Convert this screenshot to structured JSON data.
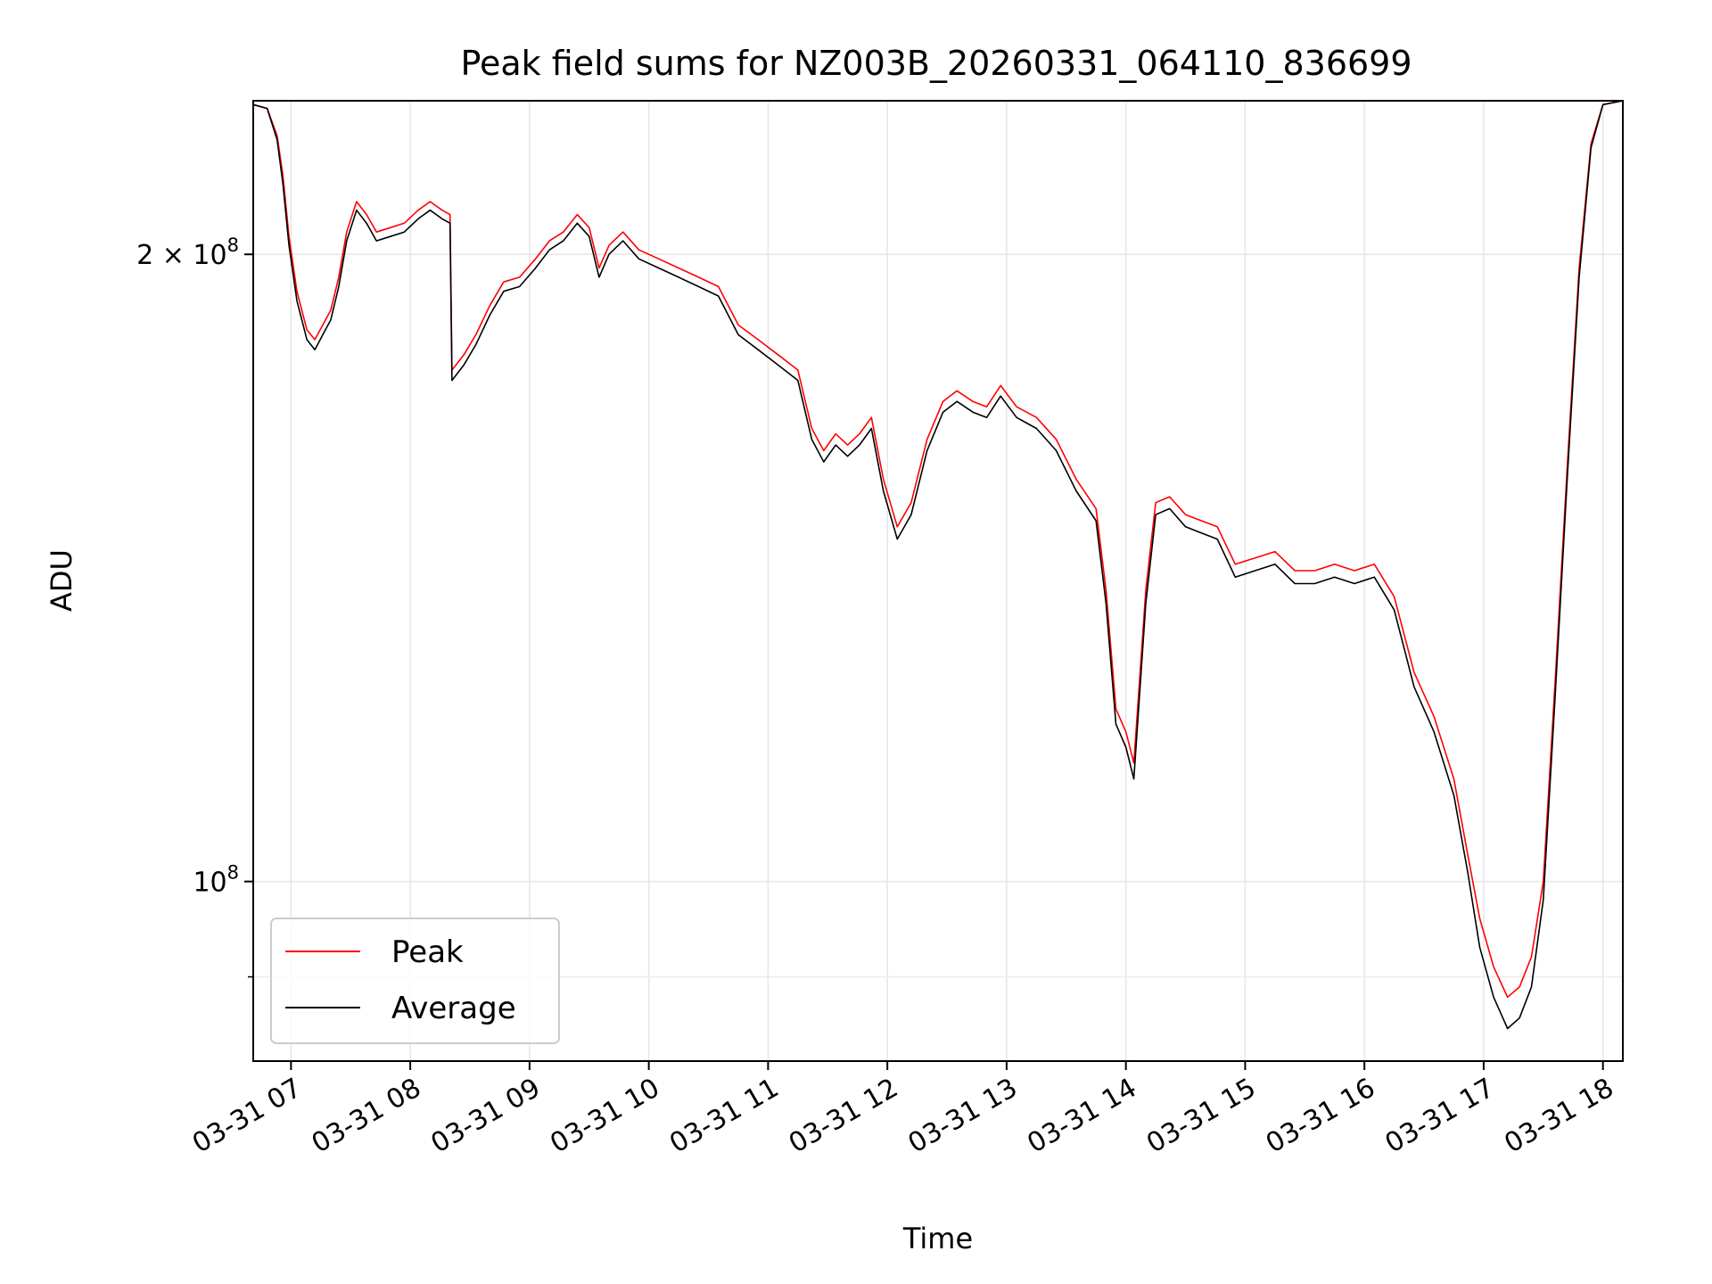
{
  "chart_data": {
    "type": "line",
    "title": "Peak field sums for NZ003B_20260331_064110_836699",
    "xlabel": "Time",
    "ylabel": "ADU",
    "x_scale": "time",
    "y_scale": "log",
    "xlim": [
      "2026-03-31 06:41",
      "2026-03-31 18:10"
    ],
    "ylim": [
      82000000,
      237000000
    ],
    "x_ticks": [
      {
        "t": "2026-03-31 07:00",
        "label": "03-31 07"
      },
      {
        "t": "2026-03-31 08:00",
        "label": "03-31 08"
      },
      {
        "t": "2026-03-31 09:00",
        "label": "03-31 09"
      },
      {
        "t": "2026-03-31 10:00",
        "label": "03-31 10"
      },
      {
        "t": "2026-03-31 11:00",
        "label": "03-31 11"
      },
      {
        "t": "2026-03-31 12:00",
        "label": "03-31 12"
      },
      {
        "t": "2026-03-31 13:00",
        "label": "03-31 13"
      },
      {
        "t": "2026-03-31 14:00",
        "label": "03-31 14"
      },
      {
        "t": "2026-03-31 15:00",
        "label": "03-31 15"
      },
      {
        "t": "2026-03-31 16:00",
        "label": "03-31 16"
      },
      {
        "t": "2026-03-31 17:00",
        "label": "03-31 17"
      },
      {
        "t": "2026-03-31 18:00",
        "label": "03-31 18"
      }
    ],
    "y_major_ticks": [
      {
        "value": 100000000,
        "label_base": "10",
        "label_exp": "8",
        "label_prefix": ""
      },
      {
        "value": 200000000,
        "label_base": "10",
        "label_exp": "8",
        "label_prefix": "2 × "
      }
    ],
    "y_minor_ticks": [
      90000000
    ],
    "grid": true,
    "legend_position": "lower-left",
    "series": [
      {
        "name": "Peak",
        "color": "#ff0000",
        "points": [
          [
            "2026-03-31 06:41",
            236000000
          ],
          [
            "2026-03-31 06:48",
            235000000
          ],
          [
            "2026-03-31 06:53",
            228000000
          ],
          [
            "2026-03-31 06:56",
            218000000
          ],
          [
            "2026-03-31 06:59",
            204000000
          ],
          [
            "2026-03-31 07:03",
            192000000
          ],
          [
            "2026-03-31 07:08",
            184000000
          ],
          [
            "2026-03-31 07:12",
            182000000
          ],
          [
            "2026-03-31 07:16",
            185000000
          ],
          [
            "2026-03-31 07:20",
            188000000
          ],
          [
            "2026-03-31 07:24",
            195000000
          ],
          [
            "2026-03-31 07:28",
            205000000
          ],
          [
            "2026-03-31 07:33",
            212000000
          ],
          [
            "2026-03-31 07:38",
            209000000
          ],
          [
            "2026-03-31 07:43",
            205000000
          ],
          [
            "2026-03-31 07:50",
            206000000
          ],
          [
            "2026-03-31 07:57",
            207000000
          ],
          [
            "2026-03-31 08:04",
            210000000
          ],
          [
            "2026-03-31 08:10",
            212000000
          ],
          [
            "2026-03-31 08:16",
            210000000
          ],
          [
            "2026-03-31 08:20",
            209000000
          ],
          [
            "2026-03-31 08:21",
            176000000
          ],
          [
            "2026-03-31 08:27",
            179000000
          ],
          [
            "2026-03-31 08:33",
            183000000
          ],
          [
            "2026-03-31 08:40",
            189000000
          ],
          [
            "2026-03-31 08:47",
            194000000
          ],
          [
            "2026-03-31 08:55",
            195000000
          ],
          [
            "2026-03-31 09:03",
            199000000
          ],
          [
            "2026-03-31 09:10",
            203000000
          ],
          [
            "2026-03-31 09:17",
            205000000
          ],
          [
            "2026-03-31 09:24",
            209000000
          ],
          [
            "2026-03-31 09:30",
            206000000
          ],
          [
            "2026-03-31 09:35",
            197000000
          ],
          [
            "2026-03-31 09:40",
            202000000
          ],
          [
            "2026-03-31 09:47",
            205000000
          ],
          [
            "2026-03-31 09:55",
            201000000
          ],
          [
            "2026-03-31 10:05",
            199000000
          ],
          [
            "2026-03-31 10:15",
            197000000
          ],
          [
            "2026-03-31 10:25",
            195000000
          ],
          [
            "2026-03-31 10:35",
            193000000
          ],
          [
            "2026-03-31 10:45",
            185000000
          ],
          [
            "2026-03-31 10:55",
            182000000
          ],
          [
            "2026-03-31 11:05",
            179000000
          ],
          [
            "2026-03-31 11:15",
            176000000
          ],
          [
            "2026-03-31 11:22",
            165000000
          ],
          [
            "2026-03-31 11:28",
            161000000
          ],
          [
            "2026-03-31 11:34",
            164000000
          ],
          [
            "2026-03-31 11:40",
            162000000
          ],
          [
            "2026-03-31 11:46",
            164000000
          ],
          [
            "2026-03-31 11:52",
            167000000
          ],
          [
            "2026-03-31 11:58",
            156000000
          ],
          [
            "2026-03-31 12:05",
            148000000
          ],
          [
            "2026-03-31 12:12",
            152000000
          ],
          [
            "2026-03-31 12:20",
            163000000
          ],
          [
            "2026-03-31 12:28",
            170000000
          ],
          [
            "2026-03-31 12:35",
            172000000
          ],
          [
            "2026-03-31 12:43",
            170000000
          ],
          [
            "2026-03-31 12:50",
            169000000
          ],
          [
            "2026-03-31 12:57",
            173000000
          ],
          [
            "2026-03-31 13:05",
            169000000
          ],
          [
            "2026-03-31 13:15",
            167000000
          ],
          [
            "2026-03-31 13:25",
            163000000
          ],
          [
            "2026-03-31 13:35",
            156000000
          ],
          [
            "2026-03-31 13:45",
            151000000
          ],
          [
            "2026-03-31 13:50",
            138000000
          ],
          [
            "2026-03-31 13:55",
            121000000
          ],
          [
            "2026-03-31 14:00",
            118000000
          ],
          [
            "2026-03-31 14:04",
            114000000
          ],
          [
            "2026-03-31 14:10",
            138000000
          ],
          [
            "2026-03-31 14:15",
            152000000
          ],
          [
            "2026-03-31 14:22",
            153000000
          ],
          [
            "2026-03-31 14:30",
            150000000
          ],
          [
            "2026-03-31 14:38",
            149000000
          ],
          [
            "2026-03-31 14:46",
            148000000
          ],
          [
            "2026-03-31 14:55",
            142000000
          ],
          [
            "2026-03-31 15:05",
            143000000
          ],
          [
            "2026-03-31 15:15",
            144000000
          ],
          [
            "2026-03-31 15:25",
            141000000
          ],
          [
            "2026-03-31 15:35",
            141000000
          ],
          [
            "2026-03-31 15:45",
            142000000
          ],
          [
            "2026-03-31 15:55",
            141000000
          ],
          [
            "2026-03-31 16:05",
            142000000
          ],
          [
            "2026-03-31 16:15",
            137000000
          ],
          [
            "2026-03-31 16:25",
            126000000
          ],
          [
            "2026-03-31 16:35",
            120000000
          ],
          [
            "2026-03-31 16:45",
            112000000
          ],
          [
            "2026-03-31 16:52",
            103000000
          ],
          [
            "2026-03-31 16:58",
            96000000
          ],
          [
            "2026-03-31 17:05",
            91000000
          ],
          [
            "2026-03-31 17:12",
            88000000
          ],
          [
            "2026-03-31 17:18",
            89000000
          ],
          [
            "2026-03-31 17:24",
            92000000
          ],
          [
            "2026-03-31 17:30",
            100000000
          ],
          [
            "2026-03-31 17:36",
            125000000
          ],
          [
            "2026-03-31 17:42",
            158000000
          ],
          [
            "2026-03-31 17:48",
            197000000
          ],
          [
            "2026-03-31 17:54",
            226000000
          ],
          [
            "2026-03-31 18:00",
            236000000
          ],
          [
            "2026-03-31 18:10",
            237000000
          ]
        ]
      },
      {
        "name": "Average",
        "color": "#000000",
        "points": [
          [
            "2026-03-31 06:41",
            236000000
          ],
          [
            "2026-03-31 06:48",
            235000000
          ],
          [
            "2026-03-31 06:53",
            227000000
          ],
          [
            "2026-03-31 06:56",
            216000000
          ],
          [
            "2026-03-31 06:59",
            202000000
          ],
          [
            "2026-03-31 07:03",
            190000000
          ],
          [
            "2026-03-31 07:08",
            182000000
          ],
          [
            "2026-03-31 07:12",
            180000000
          ],
          [
            "2026-03-31 07:16",
            183000000
          ],
          [
            "2026-03-31 07:20",
            186000000
          ],
          [
            "2026-03-31 07:24",
            193000000
          ],
          [
            "2026-03-31 07:28",
            203000000
          ],
          [
            "2026-03-31 07:33",
            210000000
          ],
          [
            "2026-03-31 07:38",
            207000000
          ],
          [
            "2026-03-31 07:43",
            203000000
          ],
          [
            "2026-03-31 07:50",
            204000000
          ],
          [
            "2026-03-31 07:57",
            205000000
          ],
          [
            "2026-03-31 08:04",
            208000000
          ],
          [
            "2026-03-31 08:10",
            210000000
          ],
          [
            "2026-03-31 08:16",
            208000000
          ],
          [
            "2026-03-31 08:20",
            207000000
          ],
          [
            "2026-03-31 08:21",
            174000000
          ],
          [
            "2026-03-31 08:27",
            177000000
          ],
          [
            "2026-03-31 08:33",
            181000000
          ],
          [
            "2026-03-31 08:40",
            187000000
          ],
          [
            "2026-03-31 08:47",
            192000000
          ],
          [
            "2026-03-31 08:55",
            193000000
          ],
          [
            "2026-03-31 09:03",
            197000000
          ],
          [
            "2026-03-31 09:10",
            201000000
          ],
          [
            "2026-03-31 09:17",
            203000000
          ],
          [
            "2026-03-31 09:24",
            207000000
          ],
          [
            "2026-03-31 09:30",
            204000000
          ],
          [
            "2026-03-31 09:35",
            195000000
          ],
          [
            "2026-03-31 09:40",
            200000000
          ],
          [
            "2026-03-31 09:47",
            203000000
          ],
          [
            "2026-03-31 09:55",
            199000000
          ],
          [
            "2026-03-31 10:05",
            197000000
          ],
          [
            "2026-03-31 10:15",
            195000000
          ],
          [
            "2026-03-31 10:25",
            193000000
          ],
          [
            "2026-03-31 10:35",
            191000000
          ],
          [
            "2026-03-31 10:45",
            183000000
          ],
          [
            "2026-03-31 10:55",
            180000000
          ],
          [
            "2026-03-31 11:05",
            177000000
          ],
          [
            "2026-03-31 11:15",
            174000000
          ],
          [
            "2026-03-31 11:22",
            163000000
          ],
          [
            "2026-03-31 11:28",
            159000000
          ],
          [
            "2026-03-31 11:34",
            162000000
          ],
          [
            "2026-03-31 11:40",
            160000000
          ],
          [
            "2026-03-31 11:46",
            162000000
          ],
          [
            "2026-03-31 11:52",
            165000000
          ],
          [
            "2026-03-31 11:58",
            154000000
          ],
          [
            "2026-03-31 12:05",
            146000000
          ],
          [
            "2026-03-31 12:12",
            150000000
          ],
          [
            "2026-03-31 12:20",
            161000000
          ],
          [
            "2026-03-31 12:28",
            168000000
          ],
          [
            "2026-03-31 12:35",
            170000000
          ],
          [
            "2026-03-31 12:43",
            168000000
          ],
          [
            "2026-03-31 12:50",
            167000000
          ],
          [
            "2026-03-31 12:57",
            171000000
          ],
          [
            "2026-03-31 13:05",
            167000000
          ],
          [
            "2026-03-31 13:15",
            165000000
          ],
          [
            "2026-03-31 13:25",
            161000000
          ],
          [
            "2026-03-31 13:35",
            154000000
          ],
          [
            "2026-03-31 13:45",
            149000000
          ],
          [
            "2026-03-31 13:50",
            136000000
          ],
          [
            "2026-03-31 13:55",
            119000000
          ],
          [
            "2026-03-31 14:00",
            116000000
          ],
          [
            "2026-03-31 14:04",
            112000000
          ],
          [
            "2026-03-31 14:10",
            136000000
          ],
          [
            "2026-03-31 14:15",
            150000000
          ],
          [
            "2026-03-31 14:22",
            151000000
          ],
          [
            "2026-03-31 14:30",
            148000000
          ],
          [
            "2026-03-31 14:38",
            147000000
          ],
          [
            "2026-03-31 14:46",
            146000000
          ],
          [
            "2026-03-31 14:55",
            140000000
          ],
          [
            "2026-03-31 15:05",
            141000000
          ],
          [
            "2026-03-31 15:15",
            142000000
          ],
          [
            "2026-03-31 15:25",
            139000000
          ],
          [
            "2026-03-31 15:35",
            139000000
          ],
          [
            "2026-03-31 15:45",
            140000000
          ],
          [
            "2026-03-31 15:55",
            139000000
          ],
          [
            "2026-03-31 16:05",
            140000000
          ],
          [
            "2026-03-31 16:15",
            135000000
          ],
          [
            "2026-03-31 16:25",
            124000000
          ],
          [
            "2026-03-31 16:35",
            118000000
          ],
          [
            "2026-03-31 16:45",
            110000000
          ],
          [
            "2026-03-31 16:52",
            101000000
          ],
          [
            "2026-03-31 16:58",
            93000000
          ],
          [
            "2026-03-31 17:05",
            88000000
          ],
          [
            "2026-03-31 17:12",
            85000000
          ],
          [
            "2026-03-31 17:18",
            86000000
          ],
          [
            "2026-03-31 17:24",
            89000000
          ],
          [
            "2026-03-31 17:30",
            98000000
          ],
          [
            "2026-03-31 17:36",
            123000000
          ],
          [
            "2026-03-31 17:42",
            156000000
          ],
          [
            "2026-03-31 17:48",
            195000000
          ],
          [
            "2026-03-31 17:54",
            225000000
          ],
          [
            "2026-03-31 18:00",
            236000000
          ],
          [
            "2026-03-31 18:10",
            237000000
          ]
        ]
      }
    ]
  }
}
